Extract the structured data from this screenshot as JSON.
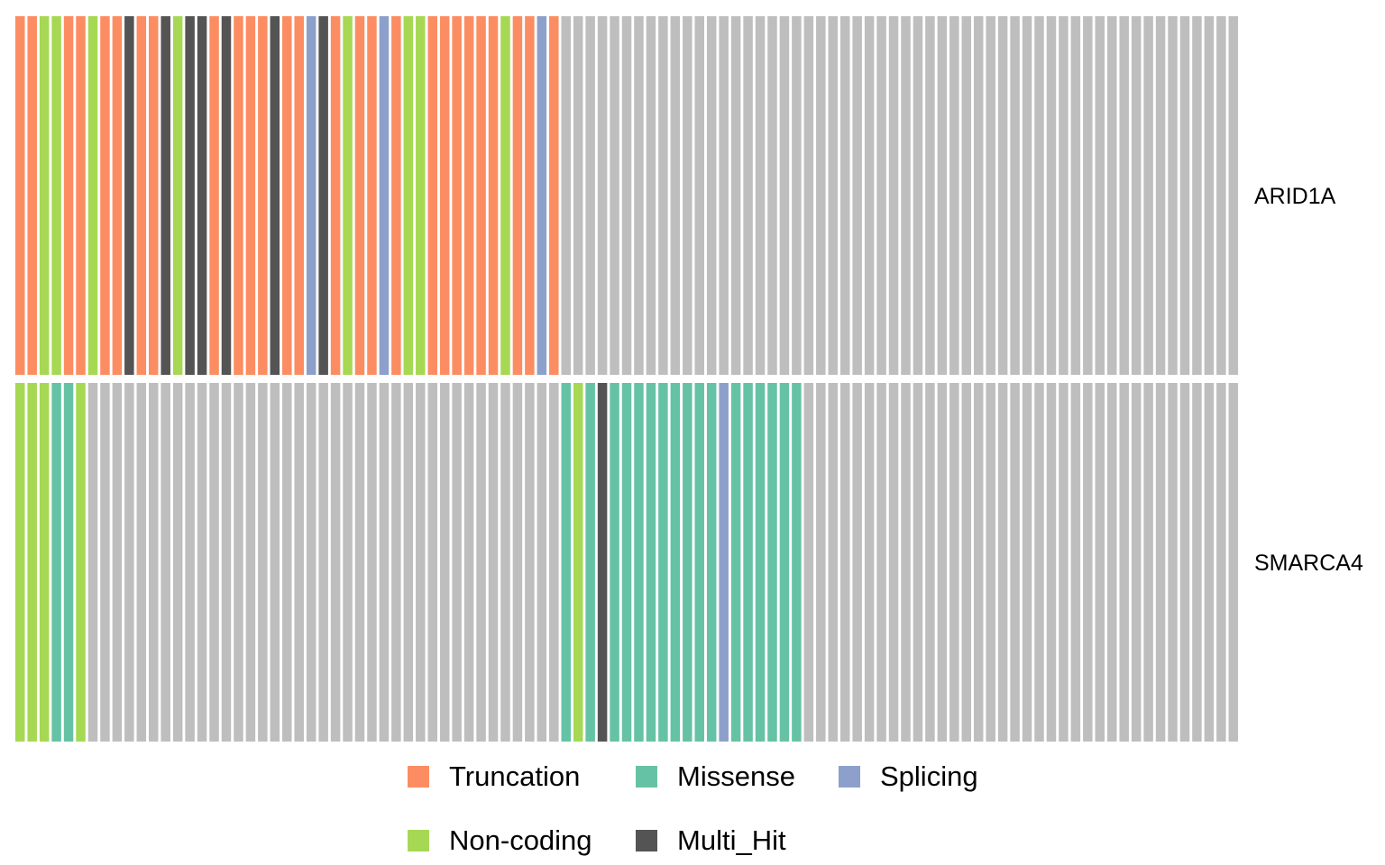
{
  "chart_data": {
    "type": "heatmap",
    "title": "",
    "rows": [
      "ARID1A",
      "SMARCA4"
    ],
    "n_samples": 101,
    "categories": {
      "T": {
        "label": "Truncation",
        "color": "#FC8D62"
      },
      "M": {
        "label": "Missense",
        "color": "#66C2A5"
      },
      "S": {
        "label": "Splicing",
        "color": "#8DA0CB"
      },
      "N": {
        "label": "Non-coding",
        "color": "#A6D854"
      },
      "X": {
        "label": "Multi_Hit",
        "color": "#545454"
      },
      "-": {
        "label": "",
        "color": "#BEBEBE"
      }
    },
    "matrix": [
      [
        "T",
        "T",
        "N",
        "N",
        "T",
        "T",
        "N",
        "T",
        "T",
        "X",
        "T",
        "T",
        "X",
        "N",
        "X",
        "X",
        "T",
        "X",
        "T",
        "T",
        "T",
        "X",
        "T",
        "T",
        "S",
        "X",
        "T",
        "N",
        "T",
        "T",
        "S",
        "T",
        "N",
        "N",
        "T",
        "T",
        "T",
        "T",
        "T",
        "T",
        "N",
        "T",
        "T",
        "S",
        "T",
        "-",
        "-",
        "-",
        "-",
        "-",
        "-",
        "-",
        "-",
        "-",
        "-",
        "-",
        "-",
        "-",
        "-",
        "-",
        "-",
        "-",
        "-",
        "-",
        "-",
        "-",
        "-",
        "-",
        "-",
        "-",
        "-",
        "-",
        "-",
        "-",
        "-",
        "-",
        "-",
        "-",
        "-",
        "-",
        "-",
        "-",
        "-",
        "-",
        "-",
        "-",
        "-",
        "-",
        "-",
        "-",
        "-",
        "-",
        "-",
        "-",
        "-",
        "-",
        "-",
        "-",
        "-",
        "-",
        "-"
      ],
      [
        "N",
        "N",
        "N",
        "M",
        "M",
        "N",
        "-",
        "-",
        "-",
        "-",
        "-",
        "-",
        "-",
        "-",
        "-",
        "-",
        "-",
        "-",
        "-",
        "-",
        "-",
        "-",
        "-",
        "-",
        "-",
        "-",
        "-",
        "-",
        "-",
        "-",
        "-",
        "-",
        "-",
        "-",
        "-",
        "-",
        "-",
        "-",
        "-",
        "-",
        "-",
        "-",
        "-",
        "-",
        "-",
        "M",
        "N",
        "M",
        "X",
        "M",
        "M",
        "M",
        "M",
        "M",
        "M",
        "M",
        "M",
        "M",
        "S",
        "M",
        "M",
        "M",
        "M",
        "M",
        "M",
        "-",
        "-",
        "-",
        "-",
        "-",
        "-",
        "-",
        "-",
        "-",
        "-",
        "-",
        "-",
        "-",
        "-",
        "-",
        "-",
        "-",
        "-",
        "-",
        "-",
        "-",
        "-",
        "-",
        "-",
        "-",
        "-",
        "-",
        "-",
        "-",
        "-",
        "-",
        "-",
        "-",
        "-",
        "-",
        "-"
      ]
    ],
    "legend": {
      "position": "bottom",
      "items": [
        "Truncation",
        "Missense",
        "Splicing",
        "Non-coding",
        "Multi_Hit"
      ]
    }
  },
  "legend_colors": {
    "truncation": "#FC8D62",
    "missense": "#66C2A5",
    "splicing": "#8DA0CB",
    "non_coding": "#A6D854",
    "multi_hit": "#545454"
  },
  "legend_labels": {
    "truncation": "Truncation",
    "missense": "Missense",
    "splicing": "Splicing",
    "non_coding": "Non-coding",
    "multi_hit": "Multi_Hit"
  }
}
